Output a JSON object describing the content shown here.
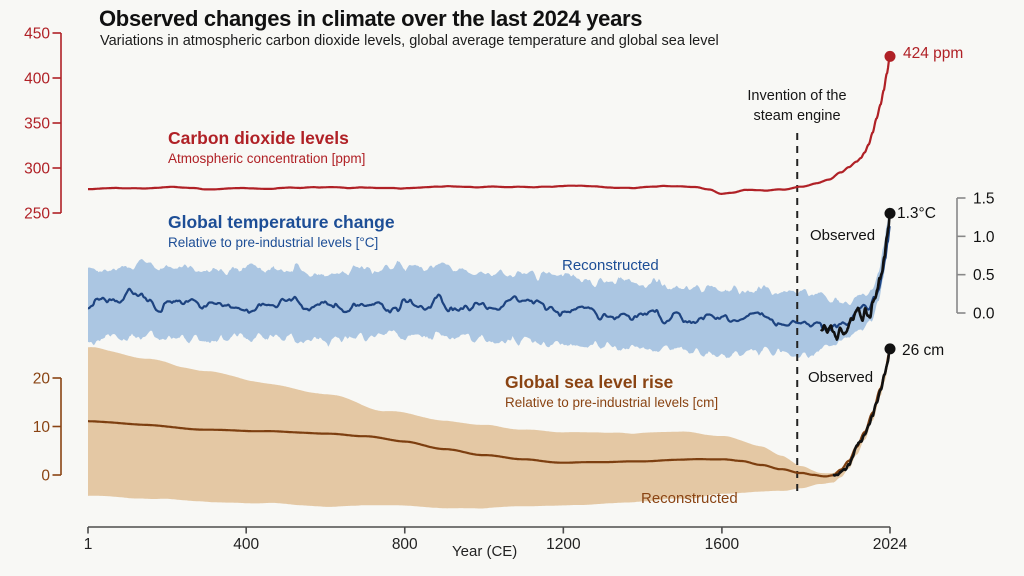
{
  "colors": {
    "background": "#f8f8f5",
    "red": "#b02126",
    "blue_line": "#1d4380",
    "blue_text": "#1d4e96",
    "blue_band": "#abc6e2",
    "brown_line": "#7d3f10",
    "brown_text": "#8a4413",
    "brown_band": "#e4c8a4",
    "black": "#111111",
    "event_line": "#222222"
  },
  "chart_data": {
    "type": "line",
    "title": "Observed changes in climate over the last 2024 years",
    "subtitle": "Variations in atmospheric carbon dioxide levels, global average temperature and global sea level",
    "x": {
      "label": "Year (CE)",
      "range": [
        1,
        2024
      ],
      "ticks": [
        [
          1,
          "1"
        ],
        [
          400,
          "400"
        ],
        [
          800,
          "800"
        ],
        [
          1200,
          "1200"
        ],
        [
          1600,
          "1600"
        ],
        [
          2024,
          "2024"
        ]
      ],
      "color": "#4d4d4d",
      "label_color": "#222222"
    },
    "event_line": {
      "year": 1790,
      "label_lines": [
        "Invention of the",
        "steam engine"
      ]
    },
    "series": [
      {
        "id": "co2",
        "name": "Carbon dioxide levels",
        "subtitle": "Atmospheric concentration [ppm]",
        "unit": "ppm",
        "color": "#b02126",
        "axis": {
          "side": "left",
          "range": [
            250,
            450
          ],
          "ticks": [
            [
              250,
              "250"
            ],
            [
              300,
              "300"
            ],
            [
              350,
              "350"
            ],
            [
              400,
              "400"
            ],
            [
              450,
              "450"
            ]
          ],
          "color": "#b02126",
          "label_color": "#b02126"
        },
        "trend": [
          [
            1,
            277.5
          ],
          [
            150,
            277.9
          ],
          [
            300,
            277.2
          ],
          [
            450,
            278.1
          ],
          [
            600,
            277.5
          ],
          [
            750,
            278.3
          ],
          [
            900,
            278.9
          ],
          [
            1050,
            279.3
          ],
          [
            1150,
            278.5
          ],
          [
            1250,
            279.7
          ],
          [
            1350,
            278.8
          ],
          [
            1450,
            279.9
          ],
          [
            1530,
            278.3
          ],
          [
            1570,
            276.6
          ],
          [
            1600,
            271.4
          ],
          [
            1625,
            272.0
          ],
          [
            1660,
            274.6
          ],
          [
            1700,
            276.1
          ],
          [
            1750,
            277.2
          ],
          [
            1800,
            280.0
          ],
          [
            1840,
            283.2
          ],
          [
            1870,
            287.0
          ],
          [
            1900,
            295.3
          ],
          [
            1920,
            301.0
          ],
          [
            1940,
            307.0
          ],
          [
            1950,
            311.0
          ],
          [
            1960,
            316.9
          ],
          [
            1970,
            325.7
          ],
          [
            1980,
            338.8
          ],
          [
            1990,
            354.4
          ],
          [
            2000,
            369.6
          ],
          [
            2008,
            385.6
          ],
          [
            2016,
            404.2
          ],
          [
            2024,
            424.0
          ]
        ],
        "noise": {
          "amp": 2.0,
          "period": 75,
          "seed": 11
        },
        "end": {
          "year": 2024,
          "value": 424,
          "label": "424 ppm",
          "dot_color": "#b02126"
        }
      },
      {
        "id": "temperature",
        "name": "Global temperature change",
        "subtitle": "Relative to pre-industrial levels [°C]",
        "unit": "°C",
        "color": "#1d4380",
        "band_color": "#abc6e2",
        "axis": {
          "side": "right",
          "range": [
            0,
            1.5
          ],
          "ticks": [
            [
              0,
              "0.0"
            ],
            [
              0.5,
              "0.5"
            ],
            [
              1,
              "1.0"
            ],
            [
              1.5,
              "1.5"
            ]
          ],
          "color": "#888888",
          "label_color": "#111111"
        },
        "trend": [
          [
            1,
            0.13
          ],
          [
            100,
            0.16
          ],
          [
            200,
            0.1
          ],
          [
            300,
            0.14
          ],
          [
            400,
            0.08
          ],
          [
            500,
            0.12
          ],
          [
            600,
            0.06
          ],
          [
            700,
            0.11
          ],
          [
            800,
            0.14
          ],
          [
            900,
            0.1
          ],
          [
            1000,
            0.08
          ],
          [
            1100,
            0.11
          ],
          [
            1200,
            0.04
          ],
          [
            1300,
            0.0
          ],
          [
            1400,
            -0.05
          ],
          [
            1500,
            -0.06
          ],
          [
            1600,
            -0.11
          ],
          [
            1700,
            -0.08
          ],
          [
            1800,
            -0.13
          ],
          [
            1850,
            -0.15
          ],
          [
            1880,
            -0.11
          ],
          [
            1900,
            -0.08
          ],
          [
            1920,
            -0.04
          ],
          [
            1935,
            0.02
          ],
          [
            1950,
            -0.01
          ],
          [
            1965,
            0.02
          ],
          [
            1975,
            0.03
          ],
          [
            1985,
            0.15
          ],
          [
            1995,
            0.32
          ],
          [
            2005,
            0.55
          ],
          [
            2012,
            0.72
          ],
          [
            2018,
            0.95
          ],
          [
            2024,
            1.2
          ]
        ],
        "noise": {
          "amp": 0.16,
          "period": 26,
          "seed": 7
        },
        "band": {
          "points": [
            [
              1,
              -0.35,
              0.58
            ],
            [
              150,
              -0.3,
              0.62
            ],
            [
              300,
              -0.34,
              0.55
            ],
            [
              450,
              -0.3,
              0.6
            ],
            [
              600,
              -0.36,
              0.52
            ],
            [
              750,
              -0.28,
              0.6
            ],
            [
              900,
              -0.32,
              0.58
            ],
            [
              1050,
              -0.35,
              0.52
            ],
            [
              1200,
              -0.4,
              0.46
            ],
            [
              1350,
              -0.45,
              0.4
            ],
            [
              1500,
              -0.48,
              0.34
            ],
            [
              1600,
              -0.55,
              0.3
            ],
            [
              1700,
              -0.5,
              0.32
            ],
            [
              1800,
              -0.55,
              0.26
            ],
            [
              1850,
              -0.5,
              0.2
            ],
            [
              1880,
              -0.4,
              0.16
            ],
            [
              1900,
              -0.33,
              0.14
            ],
            [
              1920,
              -0.28,
              0.17
            ],
            [
              1940,
              -0.2,
              0.24
            ],
            [
              1960,
              -0.22,
              0.23
            ],
            [
              1980,
              -0.08,
              0.34
            ],
            [
              1995,
              0.12,
              0.55
            ],
            [
              2008,
              0.45,
              0.85
            ],
            [
              2016,
              0.75,
              1.12
            ],
            [
              2024,
              1.05,
              1.35
            ]
          ],
          "edge_noise": {
            "amp": 0.1,
            "period": 16,
            "seed": 21
          }
        },
        "reconstructed_label": "Reconstructed",
        "observed": {
          "label": "Observed",
          "color": "#111111",
          "points": [
            [
              1850,
              -0.22
            ],
            [
              1858,
              -0.15
            ],
            [
              1866,
              -0.25
            ],
            [
              1874,
              -0.18
            ],
            [
              1882,
              -0.27
            ],
            [
              1890,
              -0.31
            ],
            [
              1898,
              -0.2
            ],
            [
              1906,
              -0.28
            ],
            [
              1914,
              -0.22
            ],
            [
              1922,
              -0.12
            ],
            [
              1930,
              -0.08
            ],
            [
              1938,
              0.03
            ],
            [
              1944,
              0.08
            ],
            [
              1950,
              -0.02
            ],
            [
              1956,
              -0.06
            ],
            [
              1962,
              0.04
            ],
            [
              1968,
              -0.02
            ],
            [
              1974,
              -0.04
            ],
            [
              1980,
              0.15
            ],
            [
              1986,
              0.2
            ],
            [
              1992,
              0.28
            ],
            [
              1998,
              0.45
            ],
            [
              2004,
              0.56
            ],
            [
              2010,
              0.72
            ],
            [
              2016,
              1.0
            ],
            [
              2020,
              1.1
            ],
            [
              2024,
              1.3
            ]
          ],
          "noise": {
            "amp": 0.06,
            "period": 7,
            "seed": 3
          }
        },
        "end": {
          "year": 2024,
          "value": 1.3,
          "label": "1.3°C",
          "dot_color": "#111111"
        }
      },
      {
        "id": "sea",
        "name": "Global sea level rise",
        "subtitle": "Relative to pre-industrial levels [cm]",
        "unit": "cm",
        "color": "#7d3f10",
        "band_color": "#e4c8a4",
        "axis": {
          "side": "left",
          "range": [
            0,
            20
          ],
          "ticks": [
            [
              0,
              "0"
            ],
            [
              10,
              "10"
            ],
            [
              20,
              "20"
            ]
          ],
          "color": "#8a4413",
          "label_color": "#8a4413"
        },
        "trend": [
          [
            1,
            11.0
          ],
          [
            150,
            10.3
          ],
          [
            300,
            9.6
          ],
          [
            450,
            9.0
          ],
          [
            600,
            8.6
          ],
          [
            700,
            8.0
          ],
          [
            800,
            7.0
          ],
          [
            900,
            5.6
          ],
          [
            1000,
            4.4
          ],
          [
            1100,
            3.4
          ],
          [
            1200,
            2.9
          ],
          [
            1300,
            2.9
          ],
          [
            1400,
            3.1
          ],
          [
            1500,
            3.4
          ],
          [
            1600,
            3.5
          ],
          [
            1650,
            3.1
          ],
          [
            1700,
            2.3
          ],
          [
            1750,
            1.3
          ],
          [
            1800,
            0.3
          ],
          [
            1830,
            -0.2
          ],
          [
            1860,
            -0.5
          ],
          [
            1880,
            -0.3
          ],
          [
            1900,
            0.8
          ],
          [
            1920,
            2.6
          ],
          [
            1940,
            5.5
          ],
          [
            1960,
            8.5
          ],
          [
            1980,
            12.5
          ],
          [
            2000,
            17.5
          ],
          [
            2010,
            20.5
          ],
          [
            2024,
            25.5
          ]
        ],
        "noise": {
          "amp": 0.5,
          "period": 240,
          "seed": 5
        },
        "band": {
          "points": [
            [
              1,
              -4.0,
              26.0
            ],
            [
              150,
              -4.8,
              24.0
            ],
            [
              300,
              -5.4,
              21.5
            ],
            [
              450,
              -5.8,
              19.0
            ],
            [
              600,
              -6.2,
              16.5
            ],
            [
              750,
              -6.4,
              13.5
            ],
            [
              900,
              -6.6,
              11.5
            ],
            [
              1000,
              -6.5,
              10.5
            ],
            [
              1100,
              -6.3,
              9.5
            ],
            [
              1200,
              -6.0,
              9.0
            ],
            [
              1300,
              -5.6,
              8.8
            ],
            [
              1400,
              -5.2,
              8.8
            ],
            [
              1500,
              -4.6,
              8.6
            ],
            [
              1600,
              -3.8,
              7.6
            ],
            [
              1700,
              -3.4,
              5.6
            ],
            [
              1750,
              -3.2,
              4.2
            ],
            [
              1800,
              -2.6,
              2.2
            ],
            [
              1850,
              -1.8,
              0.8
            ],
            [
              1880,
              -1.4,
              0.9
            ],
            [
              1900,
              -0.2,
              1.8
            ],
            [
              1920,
              1.6,
              3.6
            ],
            [
              1940,
              4.5,
              6.5
            ],
            [
              1960,
              7.5,
              9.5
            ],
            [
              1980,
              11.5,
              13.5
            ],
            [
              2000,
              16.5,
              18.5
            ],
            [
              2010,
              19.5,
              21.5
            ],
            [
              2024,
              24.2,
              26.5
            ]
          ],
          "edge_noise": {
            "amp": 0.6,
            "period": 150,
            "seed": 31
          }
        },
        "reconstructed_label": "Reconstructed",
        "observed": {
          "label": "Observed",
          "color": "#111111",
          "points": [
            [
              1880,
              -0.4
            ],
            [
              1890,
              -0.1
            ],
            [
              1900,
              0.6
            ],
            [
              1910,
              1.4
            ],
            [
              1920,
              2.6
            ],
            [
              1930,
              4.0
            ],
            [
              1940,
              5.8
            ],
            [
              1950,
              7.0
            ],
            [
              1960,
              8.6
            ],
            [
              1970,
              10.2
            ],
            [
              1980,
              12.4
            ],
            [
              1990,
              14.8
            ],
            [
              2000,
              17.4
            ],
            [
              2010,
              20.6
            ],
            [
              2018,
              23.2
            ],
            [
              2024,
              26.0
            ]
          ],
          "noise": {
            "amp": 0.7,
            "period": 9,
            "seed": 9
          }
        },
        "end": {
          "year": 2024,
          "value": 26,
          "label": "26 cm",
          "dot_color": "#111111"
        }
      }
    ]
  }
}
